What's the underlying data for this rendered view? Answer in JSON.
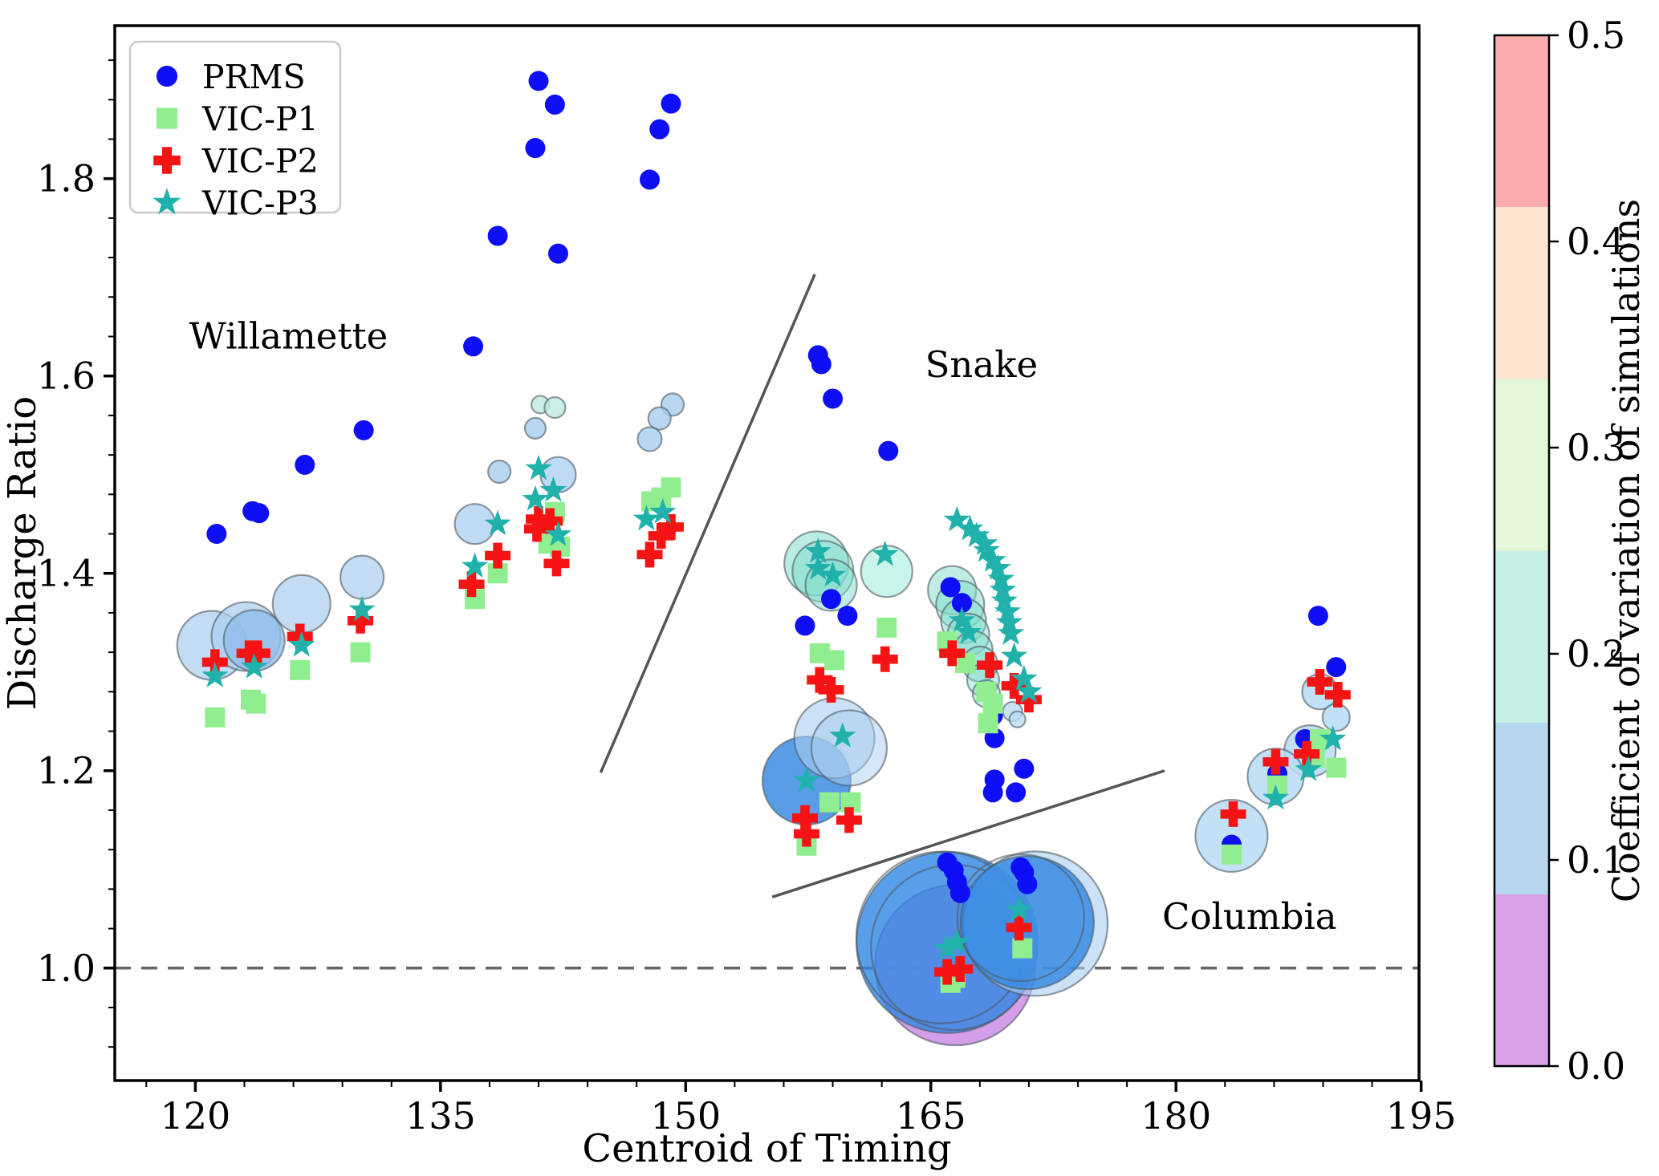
{
  "legend": {
    "items": [
      {
        "label": "PRMS",
        "marker": "circle",
        "color": "#0f0ff5"
      },
      {
        "label": "VIC-P1",
        "marker": "square",
        "color": "#90ee90"
      },
      {
        "label": "VIC-P2",
        "marker": "cross",
        "color": "#f51414"
      },
      {
        "label": "VIC-P3",
        "marker": "star",
        "color": "#20b2aa"
      }
    ]
  },
  "chart_data": {
    "type": "scatter",
    "title": "",
    "xlabel": "Centroid of Timing",
    "ylabel": "Discharge Ratio",
    "xlim": [
      115.07,
      194.87
    ],
    "ylim": [
      0.886,
      1.955
    ],
    "x_major_ticks": [
      120,
      135,
      150,
      165,
      180,
      195
    ],
    "x_minor_step": 3,
    "y_major_ticks": [
      1.0,
      1.2,
      1.4,
      1.6,
      1.8
    ],
    "y_minor_step": 0.04,
    "grid": false,
    "reference_line": {
      "y": 1.0,
      "style": "dashed",
      "color": "#666666"
    },
    "region_labels": [
      {
        "text": "Willamette",
        "x": 125.7,
        "y": 1.64
      },
      {
        "text": "Snake",
        "x": 168.1,
        "y": 1.611
      },
      {
        "text": "Columbia",
        "x": 184.5,
        "y": 1.052
      }
    ],
    "divider_lines": [
      {
        "x1": 157.9,
        "y1": 1.703,
        "x2": 144.8,
        "y2": 1.198
      },
      {
        "x1": 155.3,
        "y1": 1.072,
        "x2": 179.3,
        "y2": 1.2
      }
    ],
    "series": [
      {
        "name": "PRMS",
        "marker": "circle",
        "color": "#0f0ff5",
        "points": [
          [
            121.3,
            1.44
          ],
          [
            123.5,
            1.463
          ],
          [
            123.9,
            1.461
          ],
          [
            126.7,
            1.51
          ],
          [
            130.3,
            1.545
          ],
          [
            137.0,
            1.63
          ],
          [
            138.5,
            1.742
          ],
          [
            140.8,
            1.831
          ],
          [
            141.0,
            1.899
          ],
          [
            142.0,
            1.875
          ],
          [
            142.2,
            1.724
          ],
          [
            147.8,
            1.799
          ],
          [
            148.4,
            1.85
          ],
          [
            149.1,
            1.876
          ],
          [
            158.1,
            1.621
          ],
          [
            158.3,
            1.612
          ],
          [
            159.0,
            1.577
          ],
          [
            162.4,
            1.524
          ],
          [
            157.3,
            1.347
          ],
          [
            158.9,
            1.374
          ],
          [
            159.9,
            1.357
          ],
          [
            166.2,
            1.386
          ],
          [
            166.9,
            1.37
          ],
          [
            168.8,
            1.256
          ],
          [
            168.9,
            1.233
          ],
          [
            170.7,
            1.202
          ],
          [
            168.9,
            1.191
          ],
          [
            168.8,
            1.178
          ],
          [
            170.2,
            1.178
          ],
          [
            166.0,
            1.107
          ],
          [
            166.4,
            1.099
          ],
          [
            166.6,
            1.087
          ],
          [
            166.8,
            1.076
          ],
          [
            170.5,
            1.102
          ],
          [
            170.7,
            1.097
          ],
          [
            170.9,
            1.085
          ],
          [
            188.7,
            1.357
          ],
          [
            189.8,
            1.305
          ],
          [
            187.9,
            1.232
          ],
          [
            186.2,
            1.197
          ],
          [
            183.4,
            1.125
          ]
        ]
      },
      {
        "name": "VIC-P1",
        "marker": "square",
        "color": "#90ee90",
        "points": [
          [
            121.2,
            1.254
          ],
          [
            123.4,
            1.272
          ],
          [
            123.7,
            1.268
          ],
          [
            126.4,
            1.302
          ],
          [
            130.1,
            1.32
          ],
          [
            137.1,
            1.374
          ],
          [
            138.5,
            1.4
          ],
          [
            141.6,
            1.43
          ],
          [
            142.3,
            1.427
          ],
          [
            142.0,
            1.462
          ],
          [
            147.9,
            1.473
          ],
          [
            148.5,
            1.477
          ],
          [
            149.1,
            1.487
          ],
          [
            158.2,
            1.319
          ],
          [
            159.1,
            1.312
          ],
          [
            162.3,
            1.345
          ],
          [
            166.0,
            1.331
          ],
          [
            167.1,
            1.309
          ],
          [
            168.4,
            1.28
          ],
          [
            168.8,
            1.268
          ],
          [
            168.5,
            1.248
          ],
          [
            158.8,
            1.168
          ],
          [
            160.1,
            1.168
          ],
          [
            157.4,
            1.124
          ],
          [
            166.2,
            0.985
          ],
          [
            166.5,
            0.99
          ],
          [
            170.6,
            1.02
          ],
          [
            188.8,
            1.232
          ],
          [
            188.5,
            1.213
          ],
          [
            189.8,
            1.203
          ],
          [
            186.2,
            1.185
          ],
          [
            183.4,
            1.115
          ]
        ]
      },
      {
        "name": "VIC-P2",
        "marker": "cross",
        "color": "#f51414",
        "points": [
          [
            121.2,
            1.31
          ],
          [
            123.3,
            1.319
          ],
          [
            123.8,
            1.319
          ],
          [
            126.4,
            1.336
          ],
          [
            130.1,
            1.352
          ],
          [
            136.9,
            1.389
          ],
          [
            138.5,
            1.418
          ],
          [
            140.9,
            1.445
          ],
          [
            141.0,
            1.455
          ],
          [
            141.7,
            1.453
          ],
          [
            142.1,
            1.41
          ],
          [
            147.8,
            1.419
          ],
          [
            148.5,
            1.438
          ],
          [
            149.1,
            1.447
          ],
          [
            158.2,
            1.292
          ],
          [
            158.9,
            1.282
          ],
          [
            162.2,
            1.313
          ],
          [
            166.3,
            1.319
          ],
          [
            168.6,
            1.307
          ],
          [
            170.1,
            1.286
          ],
          [
            171.0,
            1.272
          ],
          [
            157.4,
            1.136
          ],
          [
            157.3,
            1.152
          ],
          [
            160.0,
            1.15
          ],
          [
            166.0,
            0.996
          ],
          [
            166.8,
            0.999
          ],
          [
            170.4,
            1.041
          ],
          [
            188.8,
            1.29
          ],
          [
            189.9,
            1.277
          ],
          [
            188.0,
            1.217
          ],
          [
            186.1,
            1.209
          ],
          [
            183.5,
            1.156
          ]
        ]
      },
      {
        "name": "VIC-P3",
        "marker": "star",
        "color": "#20b2aa",
        "points": [
          [
            121.2,
            1.296
          ],
          [
            123.6,
            1.305
          ],
          [
            126.5,
            1.327
          ],
          [
            130.2,
            1.363
          ],
          [
            137.1,
            1.407
          ],
          [
            138.5,
            1.45
          ],
          [
            140.8,
            1.475
          ],
          [
            141.0,
            1.506
          ],
          [
            141.9,
            1.484
          ],
          [
            142.2,
            1.439
          ],
          [
            147.6,
            1.455
          ],
          [
            148.6,
            1.462
          ],
          [
            158.1,
            1.422
          ],
          [
            158.1,
            1.405
          ],
          [
            159.0,
            1.398
          ],
          [
            162.2,
            1.419
          ],
          [
            159.6,
            1.235
          ],
          [
            157.4,
            1.19
          ],
          [
            166.6,
            1.454
          ],
          [
            167.4,
            1.445
          ],
          [
            167.8,
            1.438
          ],
          [
            168.3,
            1.43
          ],
          [
            168.4,
            1.423
          ],
          [
            168.8,
            1.413
          ],
          [
            169.1,
            1.405
          ],
          [
            169.3,
            1.394
          ],
          [
            169.4,
            1.383
          ],
          [
            169.5,
            1.372
          ],
          [
            169.7,
            1.361
          ],
          [
            169.8,
            1.35
          ],
          [
            169.9,
            1.339
          ],
          [
            170.1,
            1.316
          ],
          [
            170.7,
            1.293
          ],
          [
            171.0,
            1.28
          ],
          [
            166.9,
            1.352
          ],
          [
            167.3,
            1.34
          ],
          [
            166.0,
            1.02
          ],
          [
            166.6,
            1.026
          ],
          [
            170.4,
            1.059
          ],
          [
            189.6,
            1.232
          ],
          [
            188.1,
            1.201
          ],
          [
            186.1,
            1.172
          ]
        ]
      }
    ],
    "bubbles": [
      {
        "x": 121.0,
        "y": 1.327,
        "r": 43,
        "color": "#a9cdef",
        "opacity": 0.7
      },
      {
        "x": 123.1,
        "y": 1.336,
        "r": 43,
        "color": "#a9cdef",
        "opacity": 0.7
      },
      {
        "x": 123.6,
        "y": 1.332,
        "r": 38,
        "color": "#8ebde8",
        "opacity": 0.8
      },
      {
        "x": 126.5,
        "y": 1.369,
        "r": 36,
        "color": "#a9cdef",
        "opacity": 0.7
      },
      {
        "x": 130.2,
        "y": 1.396,
        "r": 27,
        "color": "#a9cdef",
        "opacity": 0.7
      },
      {
        "x": 137.1,
        "y": 1.45,
        "r": 25,
        "color": "#a9cdef",
        "opacity": 0.75
      },
      {
        "x": 138.6,
        "y": 1.503,
        "r": 14,
        "color": "#a9cdef",
        "opacity": 0.8
      },
      {
        "x": 142.2,
        "y": 1.5,
        "r": 22,
        "color": "#a9cdef",
        "opacity": 0.75
      },
      {
        "x": 140.8,
        "y": 1.547,
        "r": 13,
        "color": "#a9cdef",
        "opacity": 0.8
      },
      {
        "x": 141.1,
        "y": 1.571,
        "r": 11,
        "color": "#bfece2",
        "opacity": 0.85
      },
      {
        "x": 142.0,
        "y": 1.568,
        "r": 13,
        "color": "#bfece2",
        "opacity": 0.85
      },
      {
        "x": 149.2,
        "y": 1.571,
        "r": 14,
        "color": "#a9cdef",
        "opacity": 0.8
      },
      {
        "x": 148.4,
        "y": 1.557,
        "r": 14,
        "color": "#a9cdef",
        "opacity": 0.8
      },
      {
        "x": 147.8,
        "y": 1.536,
        "r": 15,
        "color": "#a9cdef",
        "opacity": 0.8
      },
      {
        "x": 158.0,
        "y": 1.41,
        "r": 40,
        "color": "#7fdccc",
        "opacity": 0.55
      },
      {
        "x": 158.4,
        "y": 1.402,
        "r": 38,
        "color": "#7fdccc",
        "opacity": 0.5
      },
      {
        "x": 158.9,
        "y": 1.388,
        "r": 32,
        "color": "#7fdccc",
        "opacity": 0.5
      },
      {
        "x": 162.3,
        "y": 1.402,
        "r": 32,
        "color": "#a5ece0",
        "opacity": 0.6
      },
      {
        "x": 166.3,
        "y": 1.383,
        "r": 30,
        "color": "#7fdccc",
        "opacity": 0.5
      },
      {
        "x": 166.8,
        "y": 1.368,
        "r": 30,
        "color": "#7fdccc",
        "opacity": 0.5
      },
      {
        "x": 167.0,
        "y": 1.352,
        "r": 28,
        "color": "#7fdccc",
        "opacity": 0.5
      },
      {
        "x": 167.3,
        "y": 1.338,
        "r": 26,
        "color": "#7fdccc",
        "opacity": 0.5
      },
      {
        "x": 167.6,
        "y": 1.322,
        "r": 24,
        "color": "#7fdccc",
        "opacity": 0.5
      },
      {
        "x": 168.0,
        "y": 1.308,
        "r": 22,
        "color": "#7fdccc",
        "opacity": 0.5
      },
      {
        "x": 168.2,
        "y": 1.292,
        "r": 20,
        "color": "#7fdccc",
        "opacity": 0.45
      },
      {
        "x": 168.4,
        "y": 1.278,
        "r": 17,
        "color": "#7fdccc",
        "opacity": 0.45
      },
      {
        "x": 157.4,
        "y": 1.19,
        "r": 55,
        "color": "#3b8ce0",
        "opacity": 0.85
      },
      {
        "x": 159.1,
        "y": 1.233,
        "r": 50,
        "color": "#a9cdef",
        "opacity": 0.6
      },
      {
        "x": 160.0,
        "y": 1.223,
        "r": 47,
        "color": "#a9cdef",
        "opacity": 0.5
      },
      {
        "x": 170.0,
        "y": 1.26,
        "r": 12,
        "color": "#b9dcf4",
        "opacity": 0.8
      },
      {
        "x": 170.3,
        "y": 1.252,
        "r": 10,
        "color": "#b9dcf4",
        "opacity": 0.8
      },
      {
        "x": 166.5,
        "y": 1.003,
        "r": 100,
        "color": "#cf93e6",
        "opacity": 0.9
      },
      {
        "x": 166.0,
        "y": 1.026,
        "r": 113,
        "color": "#2f86e2",
        "opacity": 0.8
      },
      {
        "x": 165.7,
        "y": 1.031,
        "r": 107,
        "color": "none",
        "opacity": 1
      },
      {
        "x": 166.4,
        "y": 1.021,
        "r": 103,
        "color": "none",
        "opacity": 1
      },
      {
        "x": 171.4,
        "y": 1.045,
        "r": 90,
        "color": "#a9cdef",
        "opacity": 0.6
      },
      {
        "x": 170.9,
        "y": 1.046,
        "r": 83,
        "color": "#2f86e2",
        "opacity": 0.8
      },
      {
        "x": 170.5,
        "y": 1.051,
        "r": 79,
        "color": "none",
        "opacity": 1
      },
      {
        "x": 188.8,
        "y": 1.28,
        "r": 22,
        "color": "#b9dcf4",
        "opacity": 0.85
      },
      {
        "x": 189.8,
        "y": 1.254,
        "r": 17,
        "color": "#b9dcf4",
        "opacity": 0.85
      },
      {
        "x": 188.2,
        "y": 1.22,
        "r": 32,
        "color": "#b9dcf4",
        "opacity": 0.85
      },
      {
        "x": 186.1,
        "y": 1.194,
        "r": 35,
        "color": "#b9dcf4",
        "opacity": 0.85
      },
      {
        "x": 183.4,
        "y": 1.134,
        "r": 45,
        "color": "#b9dcf4",
        "opacity": 0.85
      }
    ],
    "colorbar": {
      "label": "Coefficient of variation of simulations",
      "range": [
        0.0,
        0.5
      ],
      "ticks": [
        "0.0",
        "0.1",
        "0.2",
        "0.3",
        "0.4",
        "0.5"
      ],
      "bands": [
        {
          "min": 0.0,
          "max": 0.0833,
          "color": "#d8a0e6"
        },
        {
          "min": 0.0833,
          "max": 0.1667,
          "color": "#b6d6f0"
        },
        {
          "min": 0.1667,
          "max": 0.25,
          "color": "#c6f0e6"
        },
        {
          "min": 0.25,
          "max": 0.3333,
          "color": "#e4f6d8"
        },
        {
          "min": 0.3333,
          "max": 0.4167,
          "color": "#fce4d0"
        },
        {
          "min": 0.4167,
          "max": 0.5,
          "color": "#fcacac"
        }
      ]
    }
  }
}
